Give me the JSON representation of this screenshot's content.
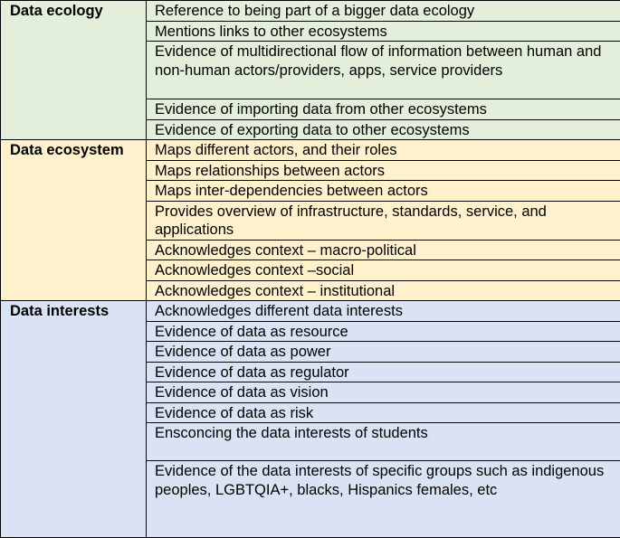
{
  "groups": [
    {
      "category": "Data ecology",
      "color": "#e3efda",
      "items": [
        "Reference to  being part of a bigger  data ecology",
        "Mentions links to other ecosystems",
        "Evidence of multidirectional flow of information between human and non-human actors/providers, apps, service providers",
        "Evidence of importing data from other ecosystems",
        "Evidence of exporting data to other ecosystems"
      ]
    },
    {
      "category": "Data ecosystem",
      "color": "#fef1cc",
      "items": [
        "Maps  different actors, and their roles",
        "Maps relationships between actors",
        "Maps inter-dependencies between actors",
        "Provides overview of infrastructure, standards, service, and applications",
        "Acknowledges context – macro-political",
        "Acknowledges context –social",
        "Acknowledges context – institutional"
      ]
    },
    {
      "category": "Data interests",
      "color": "#dae3f3",
      "items": [
        "Acknowledges different data interests",
        "Evidence of data as resource",
        "Evidence of data as power",
        "Evidence of data as regulator",
        "Evidence of data as vision",
        "Evidence of data as risk",
        "Ensconcing the data interests of students",
        "Evidence of the data interests of specific groups such as indigenous peoples, LGBTQIA+, blacks, Hispanics females, etc"
      ]
    }
  ]
}
